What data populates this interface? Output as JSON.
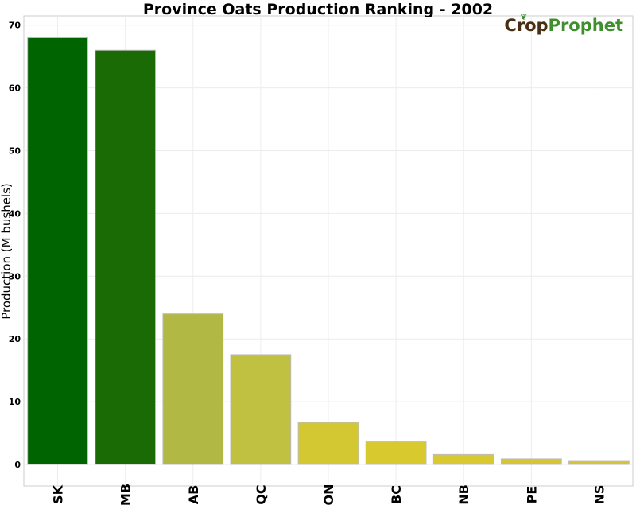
{
  "chart_data": {
    "type": "bar",
    "title": "Province Oats Production Ranking - 2002",
    "ylabel": "Production (M bushels)",
    "xlabel": "",
    "ylim": [
      0,
      72
    ],
    "yticks": [
      0,
      10,
      20,
      30,
      40,
      50,
      60,
      70
    ],
    "grid": true,
    "categories": [
      "SK",
      "MB",
      "AB",
      "QC",
      "ON",
      "BC",
      "NB",
      "PE",
      "NS"
    ],
    "values": [
      68.0,
      66.0,
      24.0,
      17.5,
      6.7,
      3.6,
      1.6,
      0.9,
      0.5
    ],
    "colors": [
      "#006400",
      "#1a6b06",
      "#b2b844",
      "#c0c041",
      "#d4c832",
      "#d8ca2e",
      "#d8c932",
      "#d6c437",
      "#d5c43a"
    ]
  },
  "logo": {
    "part1": "Crop",
    "part2": "Prophet"
  }
}
